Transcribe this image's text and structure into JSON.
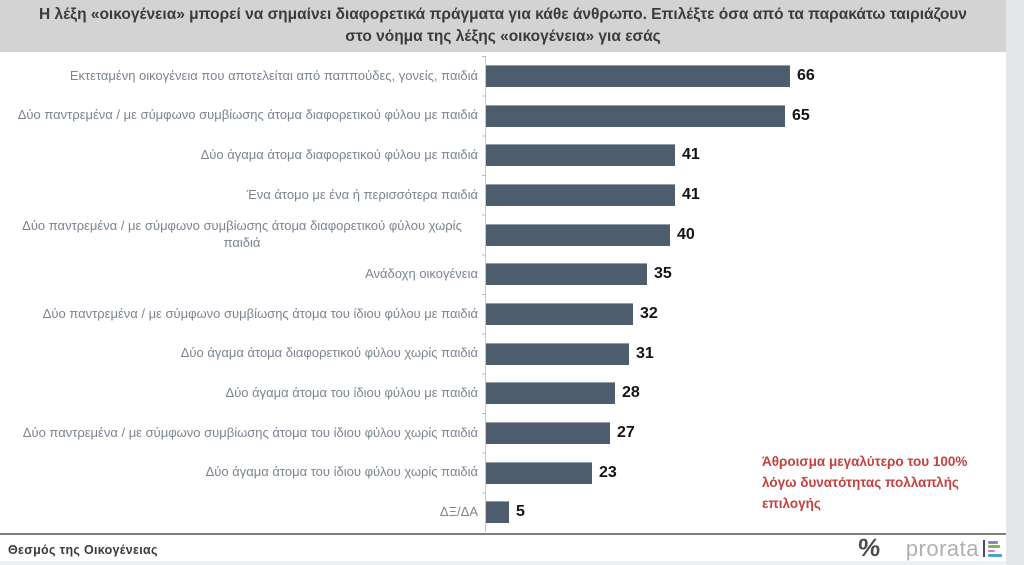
{
  "title": "Η λέξη «οικογένεια» μπορεί να σημαίνει διαφορετικά πράγματα για κάθε άνθρωπο. Επιλέξτε όσα από τα παρακάτω ταιριάζουν στο νόημα της λέξης «οικογένεια» για εσάς",
  "chart_data": {
    "type": "bar",
    "orientation": "horizontal",
    "categories": [
      "Εκτεταμένη οικογένεια που αποτελείται από παππούδες, γονείς, παιδιά",
      "Δύο παντρεμένα / με σύμφωνο συμβίωσης άτομα διαφορετικού φύλου με παιδιά",
      "Δύο άγαμα άτομα διαφορετικού φύλου με παιδιά",
      "Ένα άτομο με ένα ή περισσότερα παιδιά",
      "Δύο παντρεμένα / με σύμφωνο συμβίωσης άτομα διαφορετικού φύλου χωρίς παιδιά",
      "Ανάδοχη οικογένεια",
      "Δύο παντρεμένα / με σύμφωνο συμβίωσης άτομα του ίδιου φύλου με παιδιά",
      "Δύο άγαμα άτομα διαφορετικού φύλου χωρίς παιδιά",
      "Δύο άγαμα άτομα του ίδιου φύλου με παιδιά",
      "Δύο παντρεμένα / με σύμφωνο συμβίωσης άτομα του ίδιου φύλου χωρίς παιδιά",
      "Δύο άγαμα άτομα του ίδιου φύλου χωρίς παιδιά",
      "ΔΞ/ΔΑ"
    ],
    "values": [
      66,
      65,
      41,
      41,
      40,
      35,
      32,
      31,
      28,
      27,
      23,
      5
    ],
    "value_unit": "%",
    "xlim": [
      0,
      100
    ],
    "grid": false,
    "bar_color": "#4e5d6e",
    "annotation": "Άθροισμα μεγαλύτερο του 100% λόγω δυνατότητας πολλαπλής επιλογής",
    "annotation_color": "#c5403f"
  },
  "footer": {
    "source_label": "Θεσμός της Οικογένειας",
    "percent_mark": "%",
    "brand_name": "prorata",
    "logo_bar_colors": [
      "#9b7fc0",
      "#7eb55a",
      "#e07bbd",
      "#4fa3c7"
    ]
  }
}
